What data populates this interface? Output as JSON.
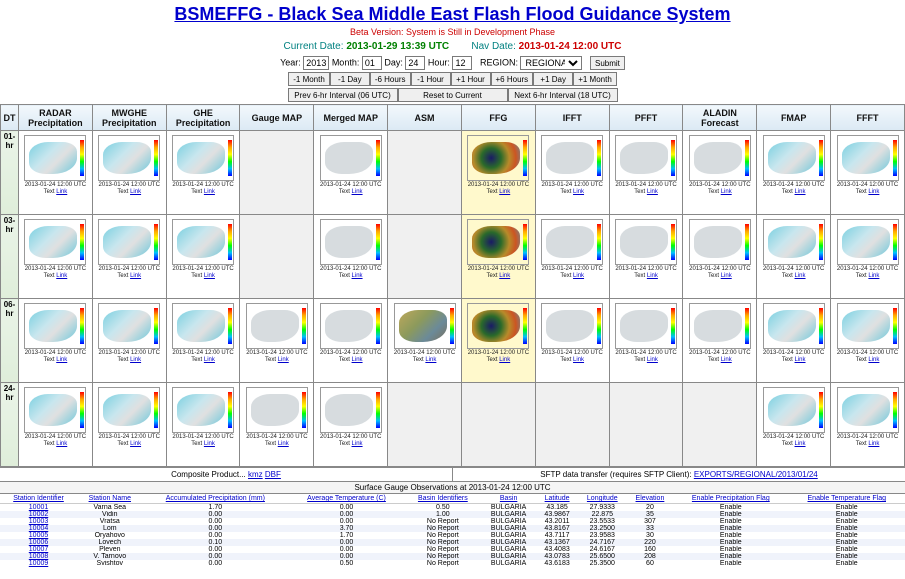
{
  "title": "BSMEFFG - Black Sea Middle East Flash Flood Guidance System",
  "beta_line": "Beta Version: System is Still in Development Phase",
  "current_date_label": "Current Date:",
  "current_date": "2013-01-29 13:39 UTC",
  "nav_date_label": "Nav Date:",
  "nav_date": "2013-01-24 12:00 UTC",
  "controls": {
    "year_label": "Year:",
    "year": "2013",
    "month_label": "Month:",
    "month": "01",
    "day_label": "Day:",
    "day": "24",
    "hour_label": "Hour:",
    "hour": "12",
    "region_label": "REGION:",
    "region": "REGIONAL",
    "submit": "Submit"
  },
  "nav_buttons": [
    "-1 Month",
    "-1 Day",
    "-6 Hours",
    "-1 Hour",
    "+1 Hour",
    "+6 Hours",
    "+1 Day",
    "+1 Month"
  ],
  "nav_buttons2": [
    "Prev 6-hr Interval (06 UTC)",
    "Reset to Current",
    "Next 6-hr Interval (18 UTC)"
  ],
  "columns": [
    "DT",
    "RADAR Precipitation",
    "MWGHE Precipitation",
    "GHE Precipitation",
    "Gauge MAP",
    "Merged MAP",
    "ASM",
    "FFG",
    "IFFT",
    "PFFT",
    "ALADIN Forecast",
    "FMAP",
    "FFFT"
  ],
  "row_labels": [
    "01-hr",
    "03-hr",
    "06-hr",
    "24-hr"
  ],
  "caption_date": "2013-01-24 12:00 UTC",
  "caption_text": "Text",
  "caption_link": "Link",
  "footer": {
    "composite_label": "Composite Product... ",
    "composite_kmz": "kmz",
    "composite_dbf": "DBF",
    "sftp_label": "SFTP data transfer (requires SFTP Client): ",
    "sftp_link": "EXPORTS/REGIONAL/2013/01/24"
  },
  "obs_header": "Surface Gauge Observations at 2013-01-24 12:00 UTC",
  "obs_columns": [
    "Station Identifier",
    "Station Name",
    "Accumulated Precipitation (mm)",
    "Average Temperature (C)",
    "Basin Identifiers",
    "Basin",
    "Latitude",
    "Longitude",
    "Elevation",
    "Enable Precipitation Flag",
    "Enable Temperature Flag"
  ],
  "obs_rows": [
    [
      "10001",
      "Varna Sea",
      "1.70",
      "0.00",
      "0.50",
      "BULGARIA",
      "43.185",
      "27.9333",
      "20",
      "Enable",
      "Enable"
    ],
    [
      "10002",
      "Vidin",
      "0.00",
      "0.00",
      "1.00",
      "BULGARIA",
      "43.9867",
      "22.875",
      "35",
      "Enable",
      "Enable"
    ],
    [
      "10003",
      "Vratsa",
      "0.00",
      "0.00",
      "No Report",
      "BULGARIA",
      "43.2011",
      "23.5533",
      "307",
      "Enable",
      "Enable"
    ],
    [
      "10004",
      "Lom",
      "0.00",
      "3.70",
      "No Report",
      "BULGARIA",
      "43.8167",
      "23.2500",
      "33",
      "Enable",
      "Enable"
    ],
    [
      "10005",
      "Oryahovo",
      "0.00",
      "1.70",
      "No Report",
      "BULGARIA",
      "43.7117",
      "23.9583",
      "30",
      "Enable",
      "Enable"
    ],
    [
      "10006",
      "Lovech",
      "0.10",
      "0.00",
      "No Report",
      "BULGARIA",
      "43.1367",
      "24.7167",
      "220",
      "Enable",
      "Enable"
    ],
    [
      "10007",
      "Pleven",
      "0.00",
      "0.00",
      "No Report",
      "BULGARIA",
      "43.4083",
      "24.6167",
      "160",
      "Enable",
      "Enable"
    ],
    [
      "10008",
      "V. Tarnovo",
      "0.00",
      "0.00",
      "No Report",
      "BULGARIA",
      "43.0783",
      "25.6500",
      "208",
      "Enable",
      "Enable"
    ],
    [
      "10009",
      "Svishtov",
      "0.00",
      "0.50",
      "No Report",
      "BULGARIA",
      "43.6183",
      "25.3500",
      "60",
      "Enable",
      "Enable"
    ]
  ],
  "grid_layout": {
    "01-hr": {
      "present": [
        1,
        2,
        3,
        5,
        7,
        8,
        9,
        10,
        11,
        12,
        13
      ],
      "style": {
        "1": "precip",
        "2": "precip",
        "3": "precip",
        "5": "light",
        "7": "ffg",
        "8": "light",
        "9": "light",
        "10": "light",
        "11": "precip",
        "12": "precip",
        "13": "light"
      }
    },
    "03-hr": {
      "present": [
        1,
        2,
        3,
        5,
        7,
        8,
        9,
        10,
        11,
        12,
        13
      ],
      "style": {
        "1": "precip",
        "2": "precip",
        "3": "precip",
        "5": "light",
        "7": "ffg",
        "8": "light",
        "9": "light",
        "10": "light",
        "11": "precip",
        "12": "precip",
        "13": "light"
      }
    },
    "06-hr": {
      "present": [
        1,
        2,
        3,
        4,
        5,
        6,
        7,
        8,
        9,
        10,
        11,
        12,
        13
      ],
      "style": {
        "1": "precip",
        "2": "precip",
        "3": "precip",
        "4": "light",
        "5": "light",
        "6": "asm",
        "7": "ffg",
        "8": "light",
        "9": "light",
        "10": "light",
        "11": "precip",
        "12": "precip",
        "13": "light"
      }
    },
    "24-hr": {
      "present": [
        1,
        2,
        3,
        4,
        5,
        11,
        12,
        13
      ],
      "style": {
        "1": "precip",
        "2": "precip",
        "3": "precip",
        "4": "light",
        "5": "light",
        "11": "precip",
        "12": "precip",
        "13": "light"
      }
    }
  }
}
